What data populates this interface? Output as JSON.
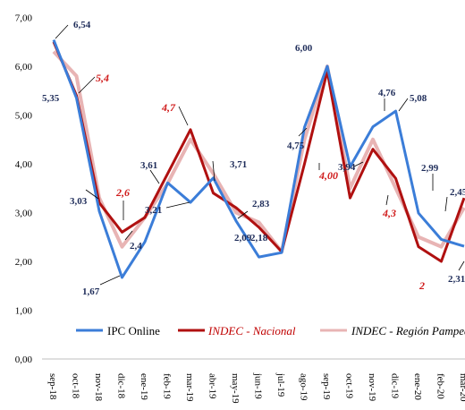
{
  "chart_data": {
    "type": "line",
    "ylim": [
      0,
      7
    ],
    "yticks": [
      "0,00",
      "1,00",
      "2,00",
      "3,00",
      "4,00",
      "5,00",
      "6,00",
      "7,00"
    ],
    "categories": [
      "sep-18",
      "oct-18",
      "nov-18",
      "dic-18",
      "ene-19",
      "feb-19",
      "mar-19",
      "abr-19",
      "may-19",
      "jun-19",
      "jul-19",
      "ago-19",
      "sep-19",
      "oct-19",
      "nov-19",
      "dic-19",
      "ene-20",
      "feb-20",
      "mar-20"
    ],
    "series": [
      {
        "name": "IPC Online",
        "color": "#3b7dd8",
        "values": [
          6.54,
          5.35,
          3.03,
          1.67,
          2.4,
          3.61,
          3.21,
          3.71,
          2.83,
          2.09,
          2.18,
          4.75,
          6.0,
          3.94,
          4.76,
          5.08,
          2.99,
          2.45,
          2.31
        ]
      },
      {
        "name": "INDEC - Nacional",
        "color": "#b01010",
        "values": [
          6.5,
          5.4,
          3.2,
          2.6,
          2.9,
          3.8,
          4.7,
          3.4,
          3.1,
          2.7,
          2.2,
          4.0,
          5.9,
          3.3,
          4.3,
          3.7,
          2.3,
          2.0,
          3.3
        ]
      },
      {
        "name": "INDEC - Región Pampeana",
        "color": "#e8b4b4",
        "values": [
          6.3,
          5.8,
          3.3,
          2.3,
          2.9,
          3.6,
          4.5,
          3.8,
          3.0,
          2.8,
          2.2,
          4.5,
          6.0,
          3.5,
          4.5,
          3.5,
          2.5,
          2.3,
          3.1
        ]
      }
    ],
    "data_labels": [
      {
        "text": "6,54",
        "style": "blue"
      },
      {
        "text": "5,35",
        "style": "blue"
      },
      {
        "text": "5,4",
        "style": "red"
      },
      {
        "text": "3,03",
        "style": "blue"
      },
      {
        "text": "2,6",
        "style": "red"
      },
      {
        "text": "1,67",
        "style": "blue"
      },
      {
        "text": "2,4",
        "style": "blue"
      },
      {
        "text": "3,61",
        "style": "blue"
      },
      {
        "text": "3,21",
        "style": "blue"
      },
      {
        "text": "4,7",
        "style": "red"
      },
      {
        "text": "3,71",
        "style": "blue"
      },
      {
        "text": "2,83",
        "style": "blue"
      },
      {
        "text": "2,09",
        "style": "blue"
      },
      {
        "text": "2,18",
        "style": "blue"
      },
      {
        "text": "4,75",
        "style": "blue"
      },
      {
        "text": "6,00",
        "style": "blue"
      },
      {
        "text": "4,00",
        "style": "red"
      },
      {
        "text": "3,94",
        "style": "blue"
      },
      {
        "text": "4,76",
        "style": "blue"
      },
      {
        "text": "4,3",
        "style": "red"
      },
      {
        "text": "5,08",
        "style": "blue"
      },
      {
        "text": "2,99",
        "style": "blue"
      },
      {
        "text": "2,45",
        "style": "blue"
      },
      {
        "text": "2",
        "style": "red"
      },
      {
        "text": "2,31",
        "style": "blue"
      }
    ],
    "legend": [
      "IPC Online",
      "INDEC - Nacional",
      "INDEC - Región Pampeana"
    ],
    "legend_position": "bottom",
    "grid": false
  }
}
